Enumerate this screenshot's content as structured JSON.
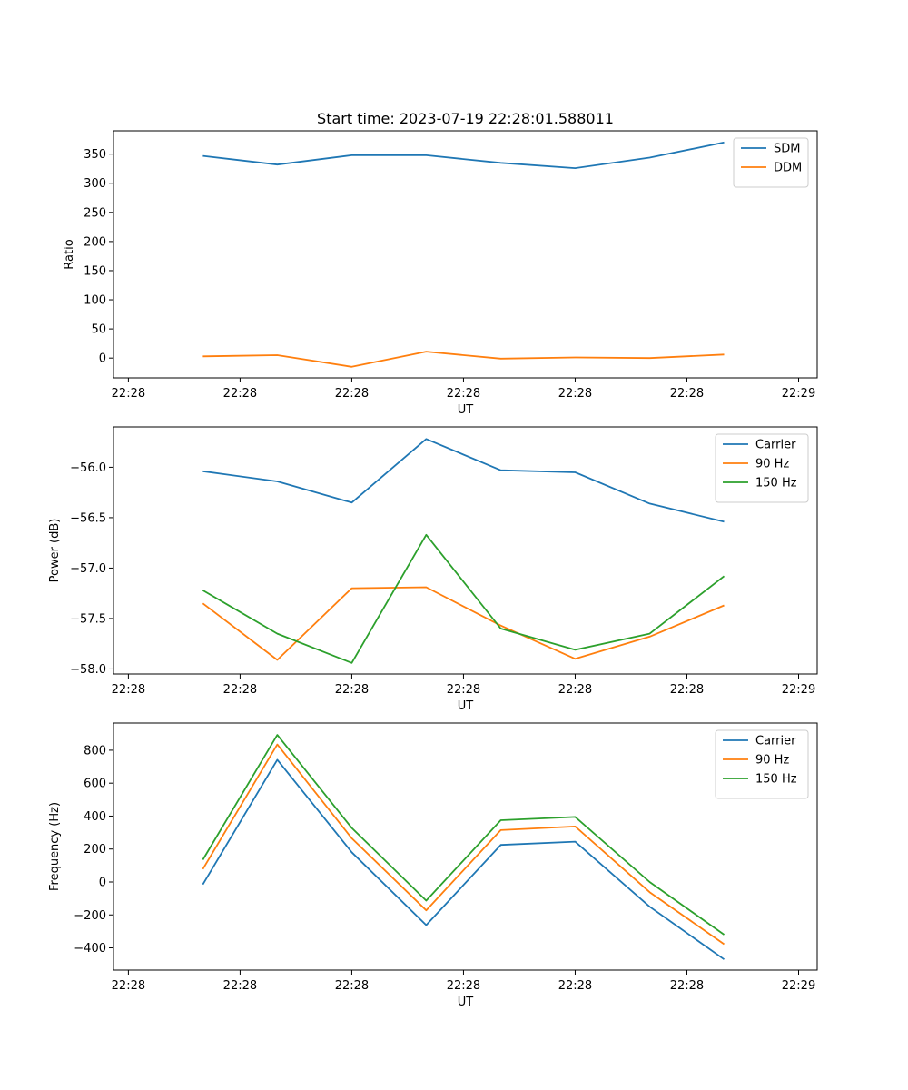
{
  "figure_title": "Start time: 2023-07-19 22:28:01.588011",
  "colors": {
    "blue": "#1f77b4",
    "orange": "#ff7f0e",
    "green": "#2ca02c"
  },
  "chart_data": [
    {
      "type": "line",
      "title": "Start time: 2023-07-19 22:28:01.588011",
      "xlabel": "UT",
      "ylabel": "Ratio",
      "x": [
        1,
        2,
        3,
        4,
        5,
        6,
        7,
        8
      ],
      "xlim": [
        -0.2,
        9.25
      ],
      "x_ticks": [
        0,
        1.5,
        3,
        4.5,
        6,
        7.5,
        9
      ],
      "x_tick_labels": [
        "22:28",
        "22:28",
        "22:28",
        "22:28",
        "22:28",
        "22:28",
        "22:29"
      ],
      "ylim": [
        -34,
        390
      ],
      "y_ticks": [
        0,
        50,
        100,
        150,
        200,
        250,
        300,
        350
      ],
      "y_tick_labels": [
        "0",
        "50",
        "100",
        "150",
        "200",
        "250",
        "300",
        "350"
      ],
      "legend_position": "top-right",
      "series": [
        {
          "name": "SDM",
          "color": "#1f77b4",
          "values": [
            347,
            332,
            348,
            348,
            335,
            326,
            344,
            370
          ]
        },
        {
          "name": "DDM",
          "color": "#ff7f0e",
          "values": [
            3,
            5,
            -15,
            11,
            -1,
            1,
            0,
            6
          ]
        }
      ]
    },
    {
      "type": "line",
      "title": "",
      "xlabel": "UT",
      "ylabel": "Power (dB)",
      "x": [
        1,
        2,
        3,
        4,
        5,
        6,
        7,
        8
      ],
      "xlim": [
        -0.2,
        9.25
      ],
      "x_ticks": [
        0,
        1.5,
        3,
        4.5,
        6,
        7.5,
        9
      ],
      "x_tick_labels": [
        "22:28",
        "22:28",
        "22:28",
        "22:28",
        "22:28",
        "22:28",
        "22:29"
      ],
      "ylim": [
        -58.05,
        -55.6
      ],
      "y_ticks": [
        -58.0,
        -57.5,
        -57.0,
        -56.5,
        -56.0
      ],
      "y_tick_labels": [
        "−58.0",
        "−57.5",
        "−57.0",
        "−56.5",
        "−56.0"
      ],
      "legend_position": "top-right",
      "series": [
        {
          "name": "Carrier",
          "color": "#1f77b4",
          "values": [
            -56.04,
            -56.14,
            -56.35,
            -55.72,
            -56.03,
            -56.05,
            -56.36,
            -56.54
          ]
        },
        {
          "name": "90 Hz",
          "color": "#ff7f0e",
          "values": [
            -57.35,
            -57.91,
            -57.2,
            -57.19,
            -57.57,
            -57.9,
            -57.68,
            -57.37
          ]
        },
        {
          "name": "150 Hz",
          "color": "#2ca02c",
          "values": [
            -57.22,
            -57.65,
            -57.94,
            -56.67,
            -57.6,
            -57.81,
            -57.65,
            -57.08
          ]
        }
      ]
    },
    {
      "type": "line",
      "title": "",
      "xlabel": "UT",
      "ylabel": "Frequency (Hz)",
      "x": [
        1,
        2,
        3,
        4,
        5,
        6,
        7,
        8
      ],
      "xlim": [
        -0.2,
        9.25
      ],
      "x_ticks": [
        0,
        1.5,
        3,
        4.5,
        6,
        7.5,
        9
      ],
      "x_tick_labels": [
        "22:28",
        "22:28",
        "22:28",
        "22:28",
        "22:28",
        "22:28",
        "22:29"
      ],
      "ylim": [
        -535,
        965
      ],
      "y_ticks": [
        -400,
        -200,
        0,
        200,
        400,
        600,
        800
      ],
      "y_tick_labels": [
        "−400",
        "−200",
        "0",
        "200",
        "400",
        "600",
        "800"
      ],
      "legend_position": "top-right",
      "series": [
        {
          "name": "Carrier",
          "color": "#1f77b4",
          "values": [
            -15,
            742,
            180,
            -262,
            225,
            245,
            -150,
            -470
          ]
        },
        {
          "name": "90 Hz",
          "color": "#ff7f0e",
          "values": [
            78,
            835,
            265,
            -172,
            315,
            337,
            -62,
            -378
          ]
        },
        {
          "name": "150 Hz",
          "color": "#2ca02c",
          "values": [
            135,
            893,
            328,
            -113,
            375,
            395,
            0,
            -320
          ]
        }
      ]
    }
  ]
}
